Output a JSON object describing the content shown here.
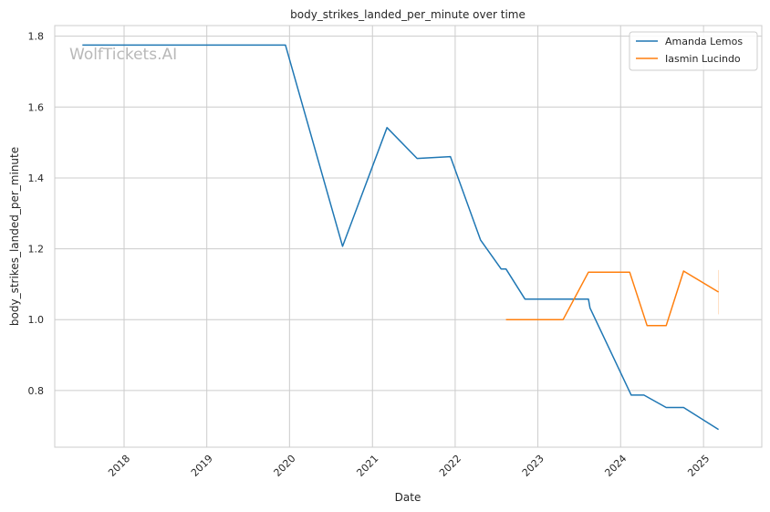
{
  "chart_data": {
    "type": "line",
    "title": "body_strikes_landed_per_minute over time",
    "xlabel": "Date",
    "ylabel": "body_strikes_landed_per_minute",
    "watermark": "WolfTickets.AI",
    "x_ticks": [
      "2018",
      "2019",
      "2020",
      "2021",
      "2022",
      "2023",
      "2024",
      "2025"
    ],
    "y_ticks": [
      "0.8",
      "1.0",
      "1.2",
      "1.4",
      "1.6",
      "1.8"
    ],
    "xlim": [
      "2017-03-01",
      "2025-09-15"
    ],
    "ylim": [
      0.64,
      1.83
    ],
    "grid": true,
    "legend_position": "top-right",
    "series": [
      {
        "name": "Amanda Lemos",
        "color": "#1f77b4",
        "points": [
          [
            "2017-07-01",
            1.775
          ],
          [
            "2019-12-14",
            1.775
          ],
          [
            "2020-08-22",
            1.207
          ],
          [
            "2021-03-06",
            1.542
          ],
          [
            "2021-07-17",
            1.455
          ],
          [
            "2021-12-11",
            1.46
          ],
          [
            "2022-04-23",
            1.225
          ],
          [
            "2022-07-23",
            1.143
          ],
          [
            "2022-08-13",
            1.143
          ],
          [
            "2022-11-05",
            1.058
          ],
          [
            "2023-08-12",
            1.058
          ],
          [
            "2023-08-19",
            1.033
          ],
          [
            "2024-02-17",
            0.787
          ],
          [
            "2024-04-13",
            0.787
          ],
          [
            "2024-07-20",
            0.752
          ],
          [
            "2024-10-05",
            0.752
          ],
          [
            "2025-03-08",
            0.69
          ]
        ]
      },
      {
        "name": "Iasmin Lucindo",
        "color": "#ff7f0e",
        "points": [
          [
            "2022-08-13",
            1.0
          ],
          [
            "2023-04-22",
            1.0
          ],
          [
            "2023-08-12",
            1.134
          ],
          [
            "2024-02-10",
            1.134
          ],
          [
            "2024-04-27",
            0.983
          ],
          [
            "2024-07-20",
            0.983
          ],
          [
            "2024-10-05",
            1.137
          ],
          [
            "2025-03-08",
            1.078
          ]
        ]
      }
    ]
  }
}
